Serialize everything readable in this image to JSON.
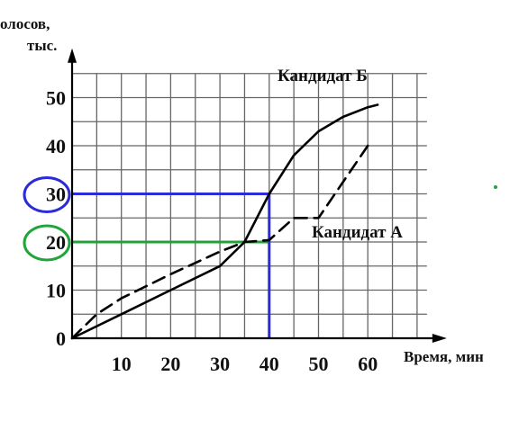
{
  "chart_data": {
    "type": "line",
    "ylabel_line1": "олосов,",
    "ylabel_line2": "тыс.",
    "xlabel": "Время, мин",
    "xlim": [
      0,
      72
    ],
    "ylim": [
      0,
      55
    ],
    "x_ticks": [
      10,
      20,
      30,
      40,
      50,
      60
    ],
    "y_ticks": [
      0,
      10,
      20,
      30,
      40,
      50
    ],
    "grid": true,
    "series": [
      {
        "name": "Кандидат Б",
        "style": "solid",
        "color": "#000000",
        "points": [
          [
            0,
            0
          ],
          [
            10,
            5
          ],
          [
            20,
            10
          ],
          [
            30,
            15
          ],
          [
            35,
            20
          ],
          [
            40,
            30
          ],
          [
            45,
            38
          ],
          [
            50,
            43
          ],
          [
            55,
            46
          ],
          [
            60,
            48
          ],
          [
            62,
            48.5
          ]
        ]
      },
      {
        "name": "Кандидат А",
        "style": "dashed",
        "color": "#000000",
        "points": [
          [
            0,
            0
          ],
          [
            5,
            5
          ],
          [
            10,
            8.3
          ],
          [
            20,
            13.3
          ],
          [
            30,
            18
          ],
          [
            35,
            20
          ],
          [
            40,
            20.4
          ],
          [
            45,
            25
          ],
          [
            50,
            25
          ],
          [
            60,
            40
          ]
        ]
      }
    ],
    "annotations": [
      {
        "value": 30,
        "x": 40,
        "color": "#2b2bd9",
        "circle_color": "#2b2bd9"
      },
      {
        "value": 20,
        "x": 40,
        "color": "#22a33a",
        "circle_color": "#1fa53a"
      }
    ]
  }
}
